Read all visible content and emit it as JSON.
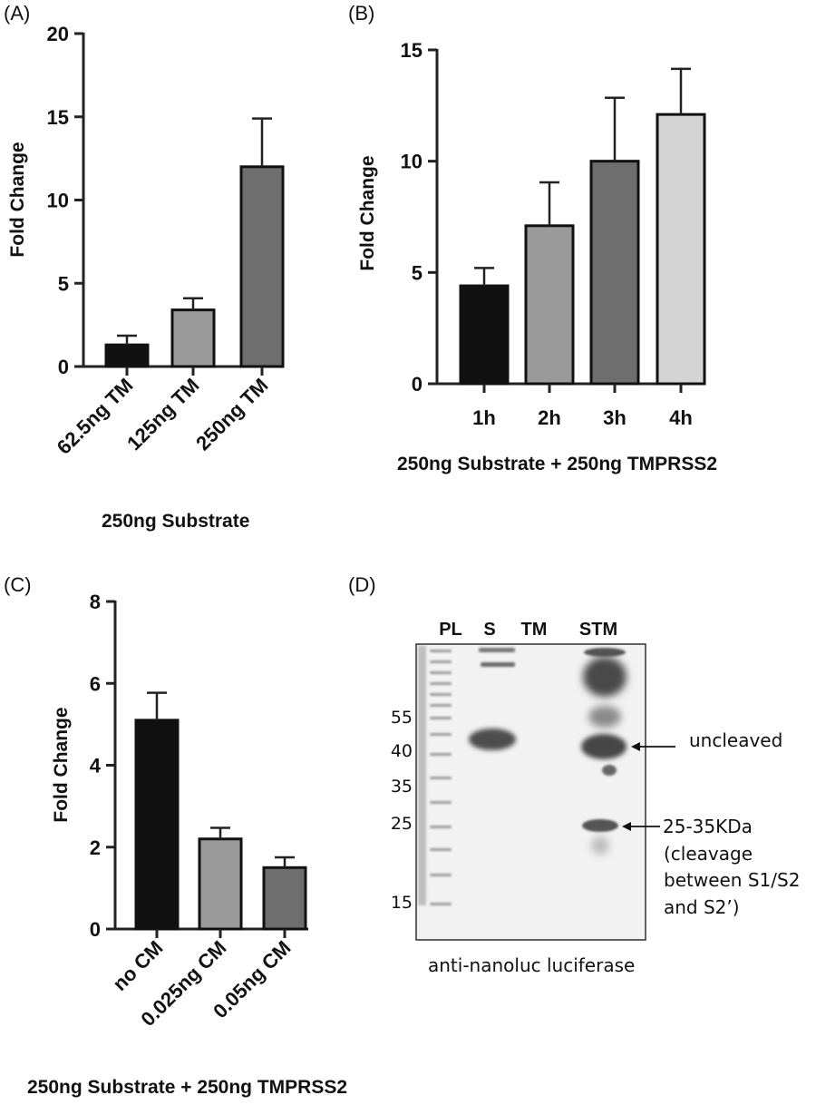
{
  "panels": {
    "a": {
      "label": "(A)",
      "xtitle": "250ng Substrate"
    },
    "b": {
      "label": "(B)",
      "xtitle": "250ng Substrate + 250ng TMPRSS2"
    },
    "c": {
      "label": "(C)",
      "xtitle": "250ng Substrate + 250ng TMPRSS2"
    },
    "d": {
      "label": "(D)"
    }
  },
  "chart_data": [
    {
      "type": "bar",
      "ylabel": "Fold  Change",
      "xlabel": "250ng Substrate",
      "ylim": [
        0,
        20
      ],
      "yticks": [
        0,
        5,
        10,
        15,
        20
      ],
      "categories": [
        "62.5ng TM",
        "125ng TM",
        "250ng TM"
      ],
      "values": [
        1.3,
        3.4,
        12.0
      ],
      "error": [
        0.55,
        0.7,
        2.9
      ],
      "colors": [
        "#111111",
        "#9a9a9a",
        "#6e6e6e"
      ]
    },
    {
      "type": "bar",
      "ylabel": "Fold  Change",
      "xlabel": "250ng Substrate + 250ng TMPRSS2",
      "ylim": [
        0,
        15
      ],
      "yticks": [
        0,
        5,
        10,
        15
      ],
      "categories": [
        "1h",
        "2h",
        "3h",
        "4h"
      ],
      "values": [
        4.4,
        7.1,
        10.0,
        12.1
      ],
      "error": [
        0.8,
        1.95,
        2.85,
        2.05
      ],
      "colors": [
        "#111111",
        "#9a9a9a",
        "#6e6e6e",
        "#d4d4d4"
      ]
    },
    {
      "type": "bar",
      "ylabel": "Fold  Change",
      "xlabel": "250ng Substrate + 250ng TMPRSS2",
      "ylim": [
        0,
        8
      ],
      "yticks": [
        0,
        2,
        4,
        6,
        8
      ],
      "categories": [
        "no CM",
        "0.025ng CM",
        "0.05ng CM"
      ],
      "values": [
        5.1,
        2.2,
        1.5
      ],
      "error": [
        0.67,
        0.27,
        0.25
      ],
      "colors": [
        "#111111",
        "#9a9a9a",
        "#6e6e6e"
      ]
    }
  ],
  "blot": {
    "lanes": [
      "PL",
      "S",
      "TM",
      "STM"
    ],
    "markers": [
      "55",
      "40",
      "35",
      "25",
      "15"
    ],
    "annotations": {
      "uncleaved": "uncleaved",
      "cleaved_lines": [
        "25-35KDa",
        "(cleavage",
        "between S1/S2",
        "and S2’)"
      ]
    },
    "caption": "anti-nanoluc luciferase"
  }
}
